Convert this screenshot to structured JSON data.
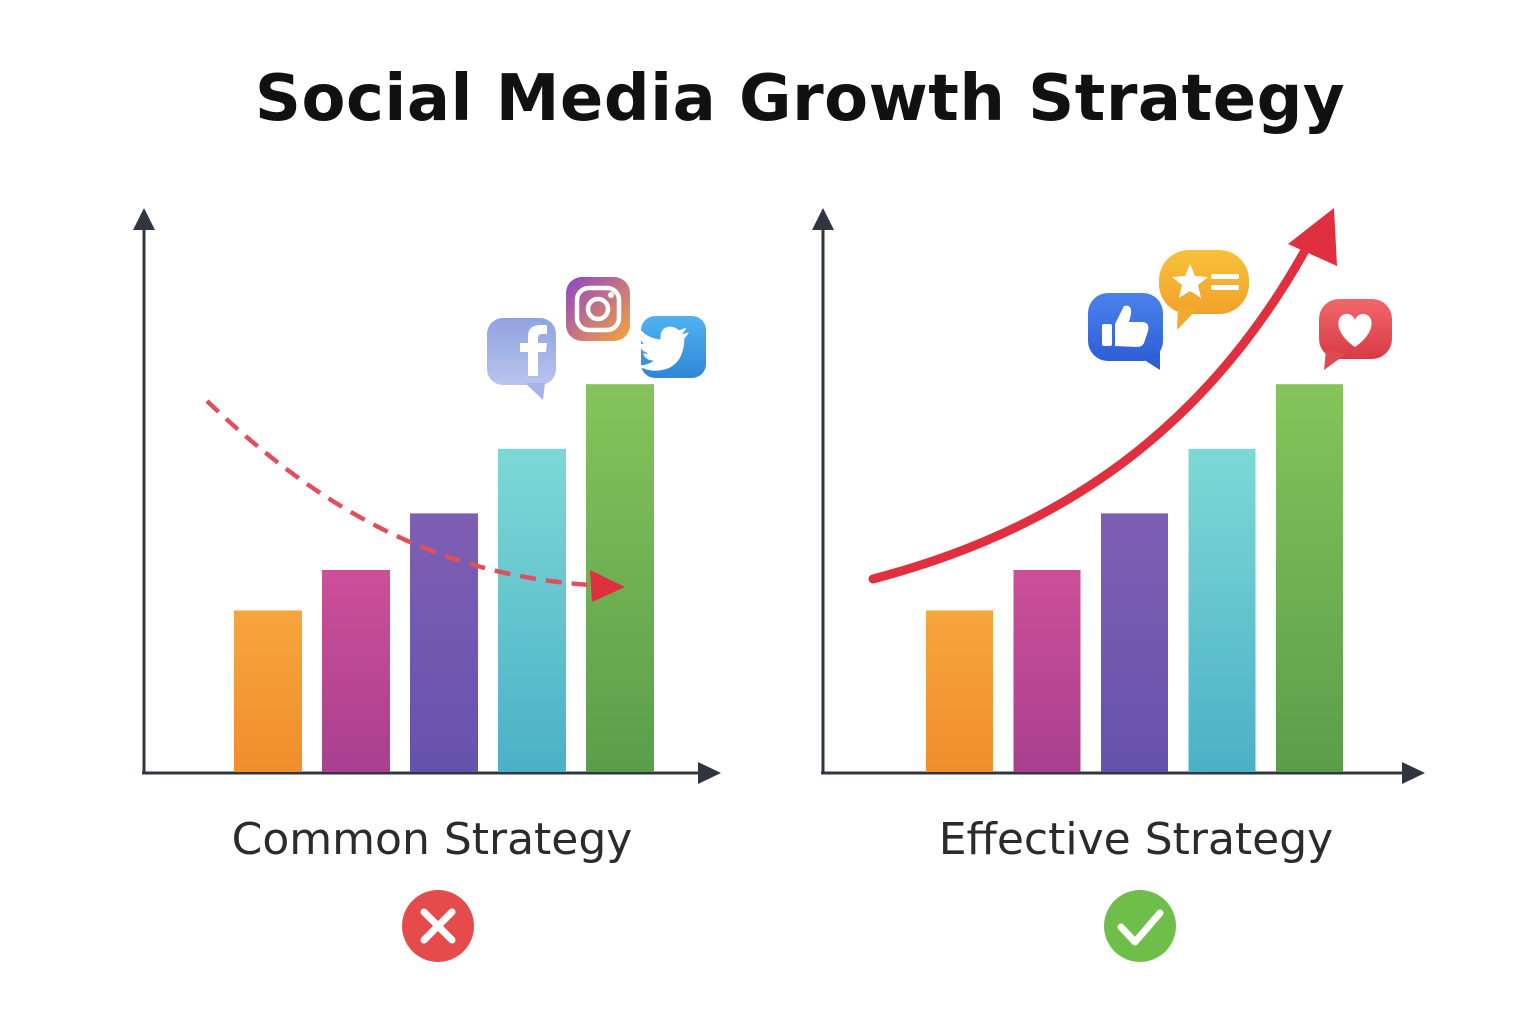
{
  "title": "Social Media Growth Strategy",
  "colors": {
    "axis": "#2f3640",
    "bars": [
      [
        "#f6a53d",
        "#f18d2c"
      ],
      [
        "#cd4f98",
        "#a8408f"
      ],
      [
        "#7f5fb4",
        "#6552ad"
      ],
      [
        "#7dd9d6",
        "#4cb0c7"
      ],
      [
        "#84c45a",
        "#5a9e4b"
      ]
    ],
    "trend": "#e0303f",
    "dashed_trend": "#e0505a",
    "bad": "#e64b4b",
    "good": "#6fbe4a"
  },
  "chart_data": [
    {
      "type": "bar",
      "label": "Common Strategy",
      "values": [
        2,
        2.5,
        3.2,
        4,
        4.8
      ],
      "trend": "down",
      "trend_style": "dashed",
      "status": "bad",
      "status_icon": "cross-icon",
      "icons": [
        "facebook-icon",
        "instagram-icon",
        "twitter-icon"
      ]
    },
    {
      "type": "bar",
      "label": "Effective Strategy",
      "values": [
        2,
        2.5,
        3.2,
        4,
        4.8
      ],
      "trend": "up",
      "trend_style": "solid",
      "status": "good",
      "status_icon": "check-icon",
      "icons": [
        "thumbs-up-icon",
        "star-review-icon",
        "heart-icon"
      ]
    }
  ]
}
